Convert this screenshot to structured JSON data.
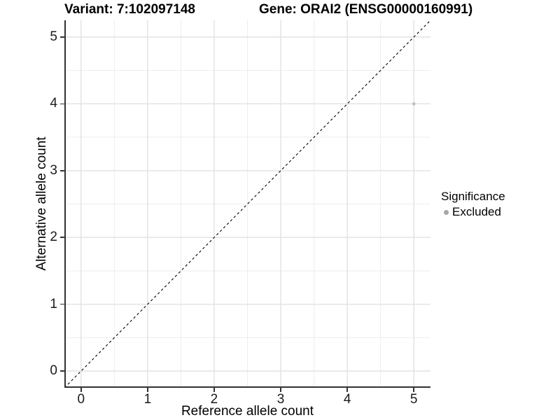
{
  "titles": {
    "variant": "Variant: 7:102097148",
    "gene": "Gene: ORAI2 (ENSG00000160991)"
  },
  "legend": {
    "title": "Significance",
    "items": [
      {
        "label": "Excluded",
        "color": "#a6a6a6"
      }
    ]
  },
  "colors": {
    "background": "#ffffff",
    "axis_line": "#333333",
    "tick_mark": "#333333",
    "tick_label": "#1a1a1a",
    "grid_major": "#e2e2e2",
    "grid_minor": "#ededed",
    "point": "#bdbdbd",
    "legend_point": "#a6a6a6",
    "reference_line": "#000000"
  },
  "chart_data": {
    "type": "scatter",
    "title": "Variant: 7:102097148 | Gene: ORAI2 (ENSG00000160991)",
    "xlabel": "Reference allele count",
    "ylabel": "Alternative allele count",
    "xlim": [
      -0.25,
      5.25
    ],
    "ylim": [
      -0.25,
      5.25
    ],
    "x_ticks": [
      0,
      1,
      2,
      3,
      4,
      5
    ],
    "y_ticks": [
      0,
      1,
      2,
      3,
      4,
      5
    ],
    "x_minor_ticks": [
      0.5,
      1.5,
      2.5,
      3.5,
      4.5
    ],
    "y_minor_ticks": [
      0.5,
      1.5,
      2.5,
      3.5,
      4.5
    ],
    "grid": "on",
    "legend_position": "right",
    "legend_title": "Significance",
    "series": [
      {
        "name": "Excluded",
        "color": "#bdbdbd",
        "point_radius": 2.3,
        "points": [
          {
            "x": 5,
            "y": 4
          }
        ]
      }
    ],
    "reference_line": {
      "type": "abline",
      "slope": 1,
      "intercept": 0,
      "style": "dashed",
      "color": "#000000"
    }
  }
}
